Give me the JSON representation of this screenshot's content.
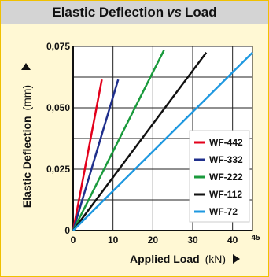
{
  "chart_data": {
    "type": "line",
    "title_main": "Elastic Deflection",
    "title_vs": "vs",
    "title_end": "Load",
    "xlabel": "Applied Load",
    "xunit": "(kN)",
    "ylabel": "Elastic Deflection",
    "yunit": "(mm)",
    "xlim": [
      0,
      45
    ],
    "ylim": [
      0,
      0.075
    ],
    "x_ticks": [
      0,
      10,
      20,
      30,
      40,
      45
    ],
    "x_tick_labels": [
      "0",
      "10",
      "20",
      "30",
      "40",
      "45"
    ],
    "y_ticks": [
      0,
      0.025,
      0.05,
      0.075
    ],
    "y_tick_labels": [
      "0",
      "0,025",
      "0,050",
      "0,075"
    ],
    "grid": true,
    "legend_position": "lower-right",
    "series": [
      {
        "name": "WF-442",
        "color": "#e3001b",
        "x": [
          0,
          7.2
        ],
        "y": [
          0,
          0.0615
        ]
      },
      {
        "name": "WF-332",
        "color": "#1f2f8c",
        "x": [
          0,
          11.3
        ],
        "y": [
          0,
          0.0615
        ]
      },
      {
        "name": "WF-222",
        "color": "#1a9a3c",
        "x": [
          0,
          22.8
        ],
        "y": [
          0,
          0.0735
        ]
      },
      {
        "name": "WF-112",
        "color": "#111111",
        "x": [
          0,
          33.4
        ],
        "y": [
          0,
          0.0725
        ]
      },
      {
        "name": "WF-72",
        "color": "#1e98e0",
        "x": [
          0,
          45.0
        ],
        "y": [
          0,
          0.0725
        ]
      }
    ]
  }
}
